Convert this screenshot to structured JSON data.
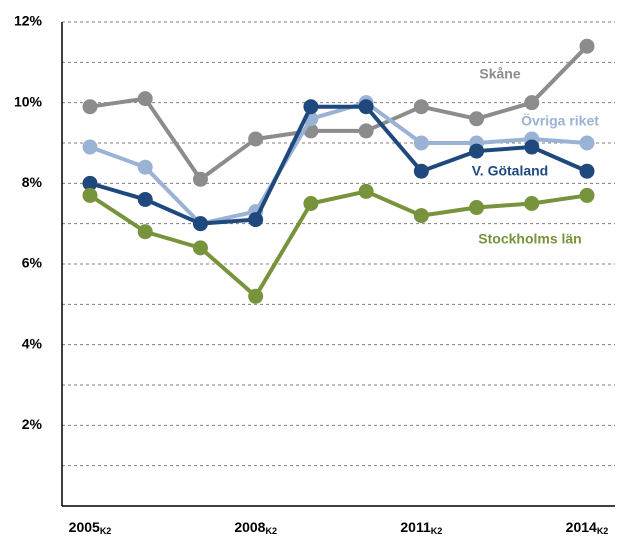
{
  "chart_data": {
    "type": "line",
    "categories": [
      "2005K2",
      null,
      null,
      "2008K2",
      null,
      null,
      "2011K2",
      null,
      null,
      "2014K2"
    ],
    "series": [
      {
        "name": "Skåne",
        "color": "#8c8c8c",
        "values": [
          9.9,
          10.1,
          8.1,
          9.1,
          9.3,
          9.3,
          9.9,
          9.6,
          10.0,
          11.4
        ]
      },
      {
        "name": "Övriga riket",
        "color": "#9ab3d5",
        "values": [
          8.9,
          8.4,
          7.0,
          7.3,
          9.6,
          10.0,
          9.0,
          9.0,
          9.1,
          9.0
        ]
      },
      {
        "name": "V. Götaland",
        "color": "#1f497d",
        "values": [
          8.0,
          7.6,
          7.0,
          7.1,
          9.9,
          9.9,
          8.3,
          8.8,
          8.9,
          8.3
        ]
      },
      {
        "name": "Stockholms län",
        "color": "#77933c",
        "values": [
          7.7,
          6.8,
          6.4,
          5.2,
          7.5,
          7.8,
          7.2,
          7.4,
          7.5,
          7.7
        ]
      }
    ],
    "ylim": [
      0,
      12
    ],
    "yticks": [
      {
        "value": 2,
        "label": "2%"
      },
      {
        "value": 4,
        "label": "4%"
      },
      {
        "value": 6,
        "label": "6%"
      },
      {
        "value": 8,
        "label": "8%"
      },
      {
        "value": 10,
        "label": "10%"
      },
      {
        "value": 12,
        "label": "12%"
      }
    ],
    "yticks_minor": [
      1,
      3,
      5,
      7,
      9,
      11
    ],
    "grid": true
  }
}
